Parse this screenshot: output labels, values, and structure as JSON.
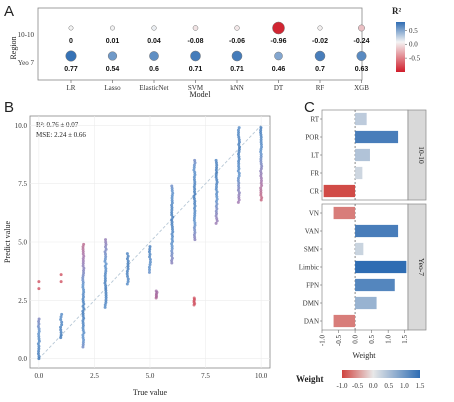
{
  "panels": {
    "a": "A",
    "b": "B",
    "c": "C"
  },
  "chart_data": [
    {
      "id": "A",
      "type": "dot-heatmap",
      "xlabel": "Model",
      "ylabel": "Region",
      "models": [
        "LR",
        "Lasso",
        "ElasticNet",
        "SVM",
        "kNN",
        "DT",
        "RF",
        "XGB"
      ],
      "rows": [
        {
          "name": "10-10",
          "values": [
            0,
            0.01,
            0.04,
            -0.08,
            -0.06,
            -0.96,
            -0.02,
            -0.24
          ],
          "labels": [
            "0",
            "0.01",
            "0.04",
            "-0.08",
            "-0.06",
            "-0.96",
            "-0.02",
            "-0.24"
          ]
        },
        {
          "name": "Yeo 7",
          "values": [
            0.77,
            0.54,
            0.6,
            0.71,
            0.71,
            0.46,
            0.7,
            0.63
          ],
          "labels": [
            "0.77",
            "0.54",
            "0.6",
            "0.71",
            "0.71",
            "0.46",
            "0.7",
            "0.63"
          ]
        }
      ],
      "legend": {
        "title": "R²",
        "ticks": [
          "0.5",
          "0.0",
          "-0.5"
        ],
        "range": [
          -1,
          0.8
        ],
        "placement": "right"
      },
      "colors": {
        "pos": "#2f6db3",
        "neg": "#d01c2a",
        "mid": "#f4f4f4"
      }
    },
    {
      "id": "B",
      "type": "scatter",
      "xlabel": "True value",
      "ylabel": "Predict value",
      "xlim": [
        -0.4,
        10.4
      ],
      "ylim": [
        -0.4,
        10.4
      ],
      "xticks": [
        "0.0",
        "2.5",
        "5.0",
        "7.5",
        "10.0"
      ],
      "yticks": [
        "0.0",
        "2.5",
        "5.0",
        "7.5",
        "10.0"
      ],
      "annotations": [
        "R²: 0.76 ± 0.07",
        "MSE: 2.24 ± 0.66"
      ],
      "reference_line": "y = x (dashed)",
      "grid": true,
      "columns": [
        {
          "x": 0,
          "ymin": 0,
          "ymax": 1.7,
          "outliers": [
            3.0,
            3.3
          ]
        },
        {
          "x": 1,
          "ymin": 0.9,
          "ymax": 1.9,
          "outliers": [
            3.3,
            3.6
          ]
        },
        {
          "x": 2,
          "ymin": 0.5,
          "ymax": 4.9,
          "outliers": []
        },
        {
          "x": 3,
          "ymin": 2.2,
          "ymax": 5.1,
          "outliers": []
        },
        {
          "x": 4,
          "ymin": 3.2,
          "ymax": 4.5,
          "outliers": []
        },
        {
          "x": 5,
          "ymin": 3.7,
          "ymax": 4.8,
          "outliers": []
        },
        {
          "x": 5.3,
          "ymin": 2.6,
          "ymax": 2.9,
          "outliers": []
        },
        {
          "x": 6,
          "ymin": 4.1,
          "ymax": 7.4,
          "outliers": []
        },
        {
          "x": 7,
          "ymin": 5.1,
          "ymax": 8.5,
          "outliers": []
        },
        {
          "x": 7,
          "ymin": 2.3,
          "ymax": 2.6,
          "outliers": []
        },
        {
          "x": 8,
          "ymin": 5.8,
          "ymax": 8.5,
          "outliers": []
        },
        {
          "x": 9,
          "ymin": 6.7,
          "ymax": 9.9,
          "outliers": []
        },
        {
          "x": 10,
          "ymin": 6.8,
          "ymax": 9.9,
          "outliers": []
        }
      ]
    },
    {
      "id": "C",
      "type": "bar",
      "orientation": "horizontal",
      "xlabel": "Weight",
      "xlim": [
        -1.0,
        1.6
      ],
      "xticks": [
        "-1.0",
        "-0.5",
        "0.0",
        "0.5",
        "1.0",
        "1.5"
      ],
      "facets": [
        {
          "name": "10-10",
          "categories": [
            "RT",
            "POR",
            "LT",
            "FR",
            "CR"
          ],
          "values": [
            0.35,
            1.3,
            0.45,
            0.22,
            -0.95
          ]
        },
        {
          "name": "Yeo-7",
          "categories": [
            "VN",
            "VAN",
            "SMN",
            "Limbic",
            "FPN",
            "DMN",
            "DAN"
          ],
          "values": [
            -0.65,
            1.3,
            0.25,
            1.55,
            1.2,
            0.65,
            -0.65
          ]
        }
      ],
      "legend": {
        "title": "Weight",
        "ticks": [
          "-1.0",
          "-0.5",
          "0.0",
          "0.5",
          "1.0",
          "1.5"
        ],
        "placement": "bottom"
      },
      "colors": {
        "pos": "#2f6db3",
        "neg": "#d0433f",
        "mid": "#e8e8e8"
      }
    }
  ]
}
